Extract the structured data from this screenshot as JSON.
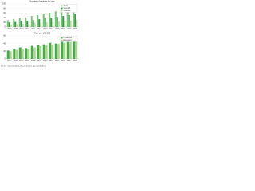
{
  "chart_data": [
    {
      "type": "bar",
      "title": "Number of patients by year",
      "categories": [
        "2007",
        "2008",
        "2009",
        "2010",
        "2011",
        "2012",
        "2013",
        "2014",
        "2015",
        "2016",
        "2017",
        "2018"
      ],
      "series": [
        {
          "name": "Total",
          "color": "#7cc47a",
          "values": [
            30,
            35,
            38,
            42,
            48,
            52,
            58,
            62,
            68,
            75,
            80,
            88
          ]
        },
        {
          "name": "Group A",
          "color": "#3a9a4a",
          "values": [
            20,
            22,
            25,
            28,
            30,
            34,
            38,
            40,
            44,
            48,
            52,
            56
          ]
        },
        {
          "name": "Group B",
          "color": "#b8e0a0",
          "values": [
            10,
            13,
            13,
            14,
            18,
            18,
            20,
            22,
            24,
            27,
            28,
            32
          ]
        }
      ],
      "ylim": [
        0,
        100
      ],
      "yticks": [
        0,
        20,
        40,
        60,
        80,
        100
      ],
      "grid": true,
      "legend": "upper right"
    },
    {
      "type": "bar",
      "title": "Rate per 100,000",
      "categories": [
        "2007",
        "2008",
        "2009",
        "2010",
        "2011",
        "2012",
        "2013",
        "2014",
        "2015",
        "2016",
        "2017",
        "2018"
      ],
      "series": [
        {
          "name": "Observed",
          "color": "#4aa84f",
          "values": [
            22,
            26,
            30,
            28,
            34,
            36,
            38,
            42,
            40,
            46,
            48,
            52
          ]
        },
        {
          "name": "Expected",
          "color": "#a8d88e",
          "values": [
            20,
            24,
            26,
            27,
            30,
            33,
            35,
            38,
            39,
            42,
            44,
            47
          ]
        }
      ],
      "ylim": [
        0,
        60
      ],
      "yticks": [
        0,
        20,
        40,
        60
      ],
      "grid": true,
      "legend": "upper right"
    }
  ],
  "note": "Source: national registry data. Rates are age-standardized."
}
